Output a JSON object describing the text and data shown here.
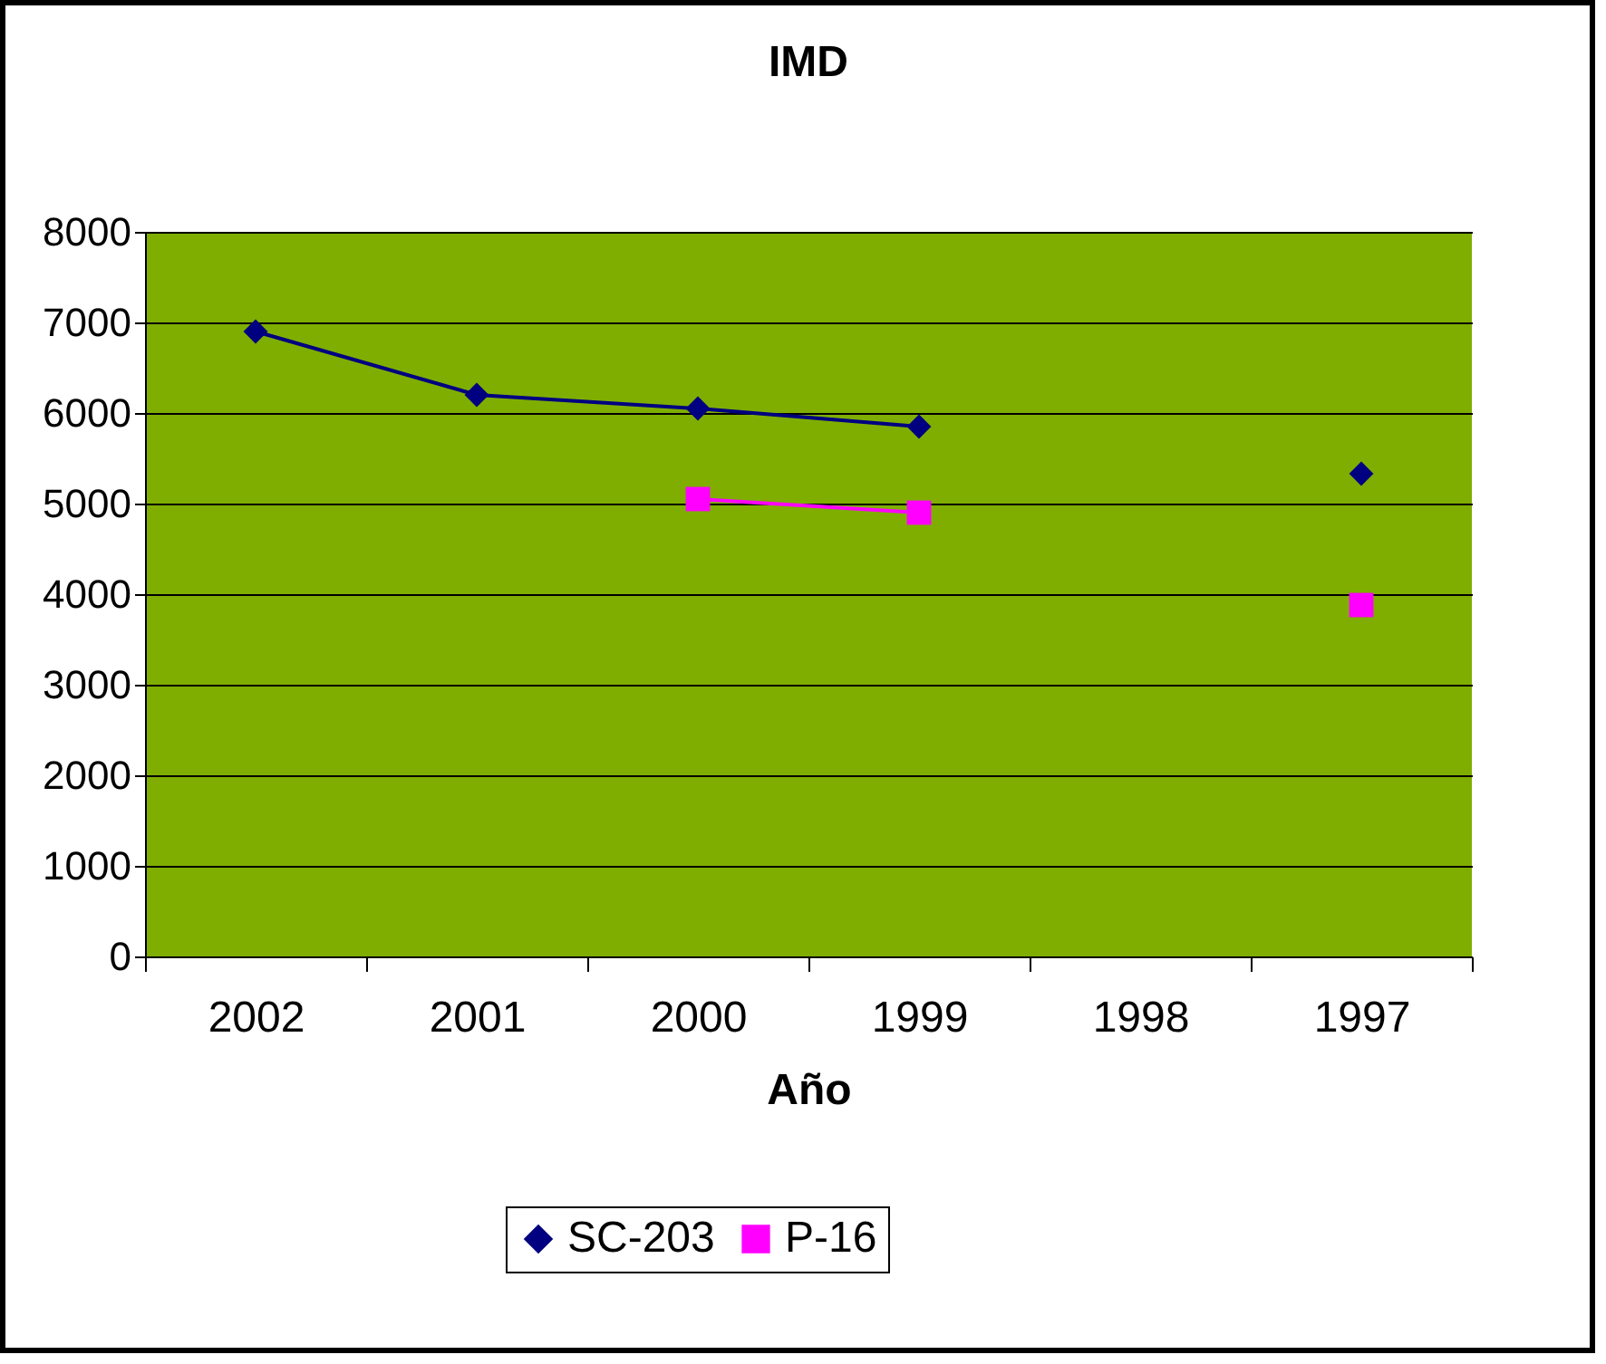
{
  "chart_data": {
    "type": "line",
    "title": "IMD",
    "xlabel": "Año",
    "categories": [
      "2002",
      "2001",
      "2000",
      "1999",
      "1998",
      "1997"
    ],
    "series": [
      {
        "name": "SC-203",
        "color": "#000080",
        "marker": "diamond",
        "values": [
          6900,
          6200,
          6050,
          5850,
          null,
          5330
        ]
      },
      {
        "name": "P-16",
        "color": "#ff00ff",
        "marker": "square",
        "values": [
          null,
          null,
          5050,
          4900,
          null,
          3880
        ]
      }
    ],
    "ylim": [
      0,
      8000
    ],
    "yticks": [
      0,
      1000,
      2000,
      3000,
      4000,
      5000,
      6000,
      7000,
      8000
    ],
    "grid": "y",
    "legend": "bottom"
  }
}
